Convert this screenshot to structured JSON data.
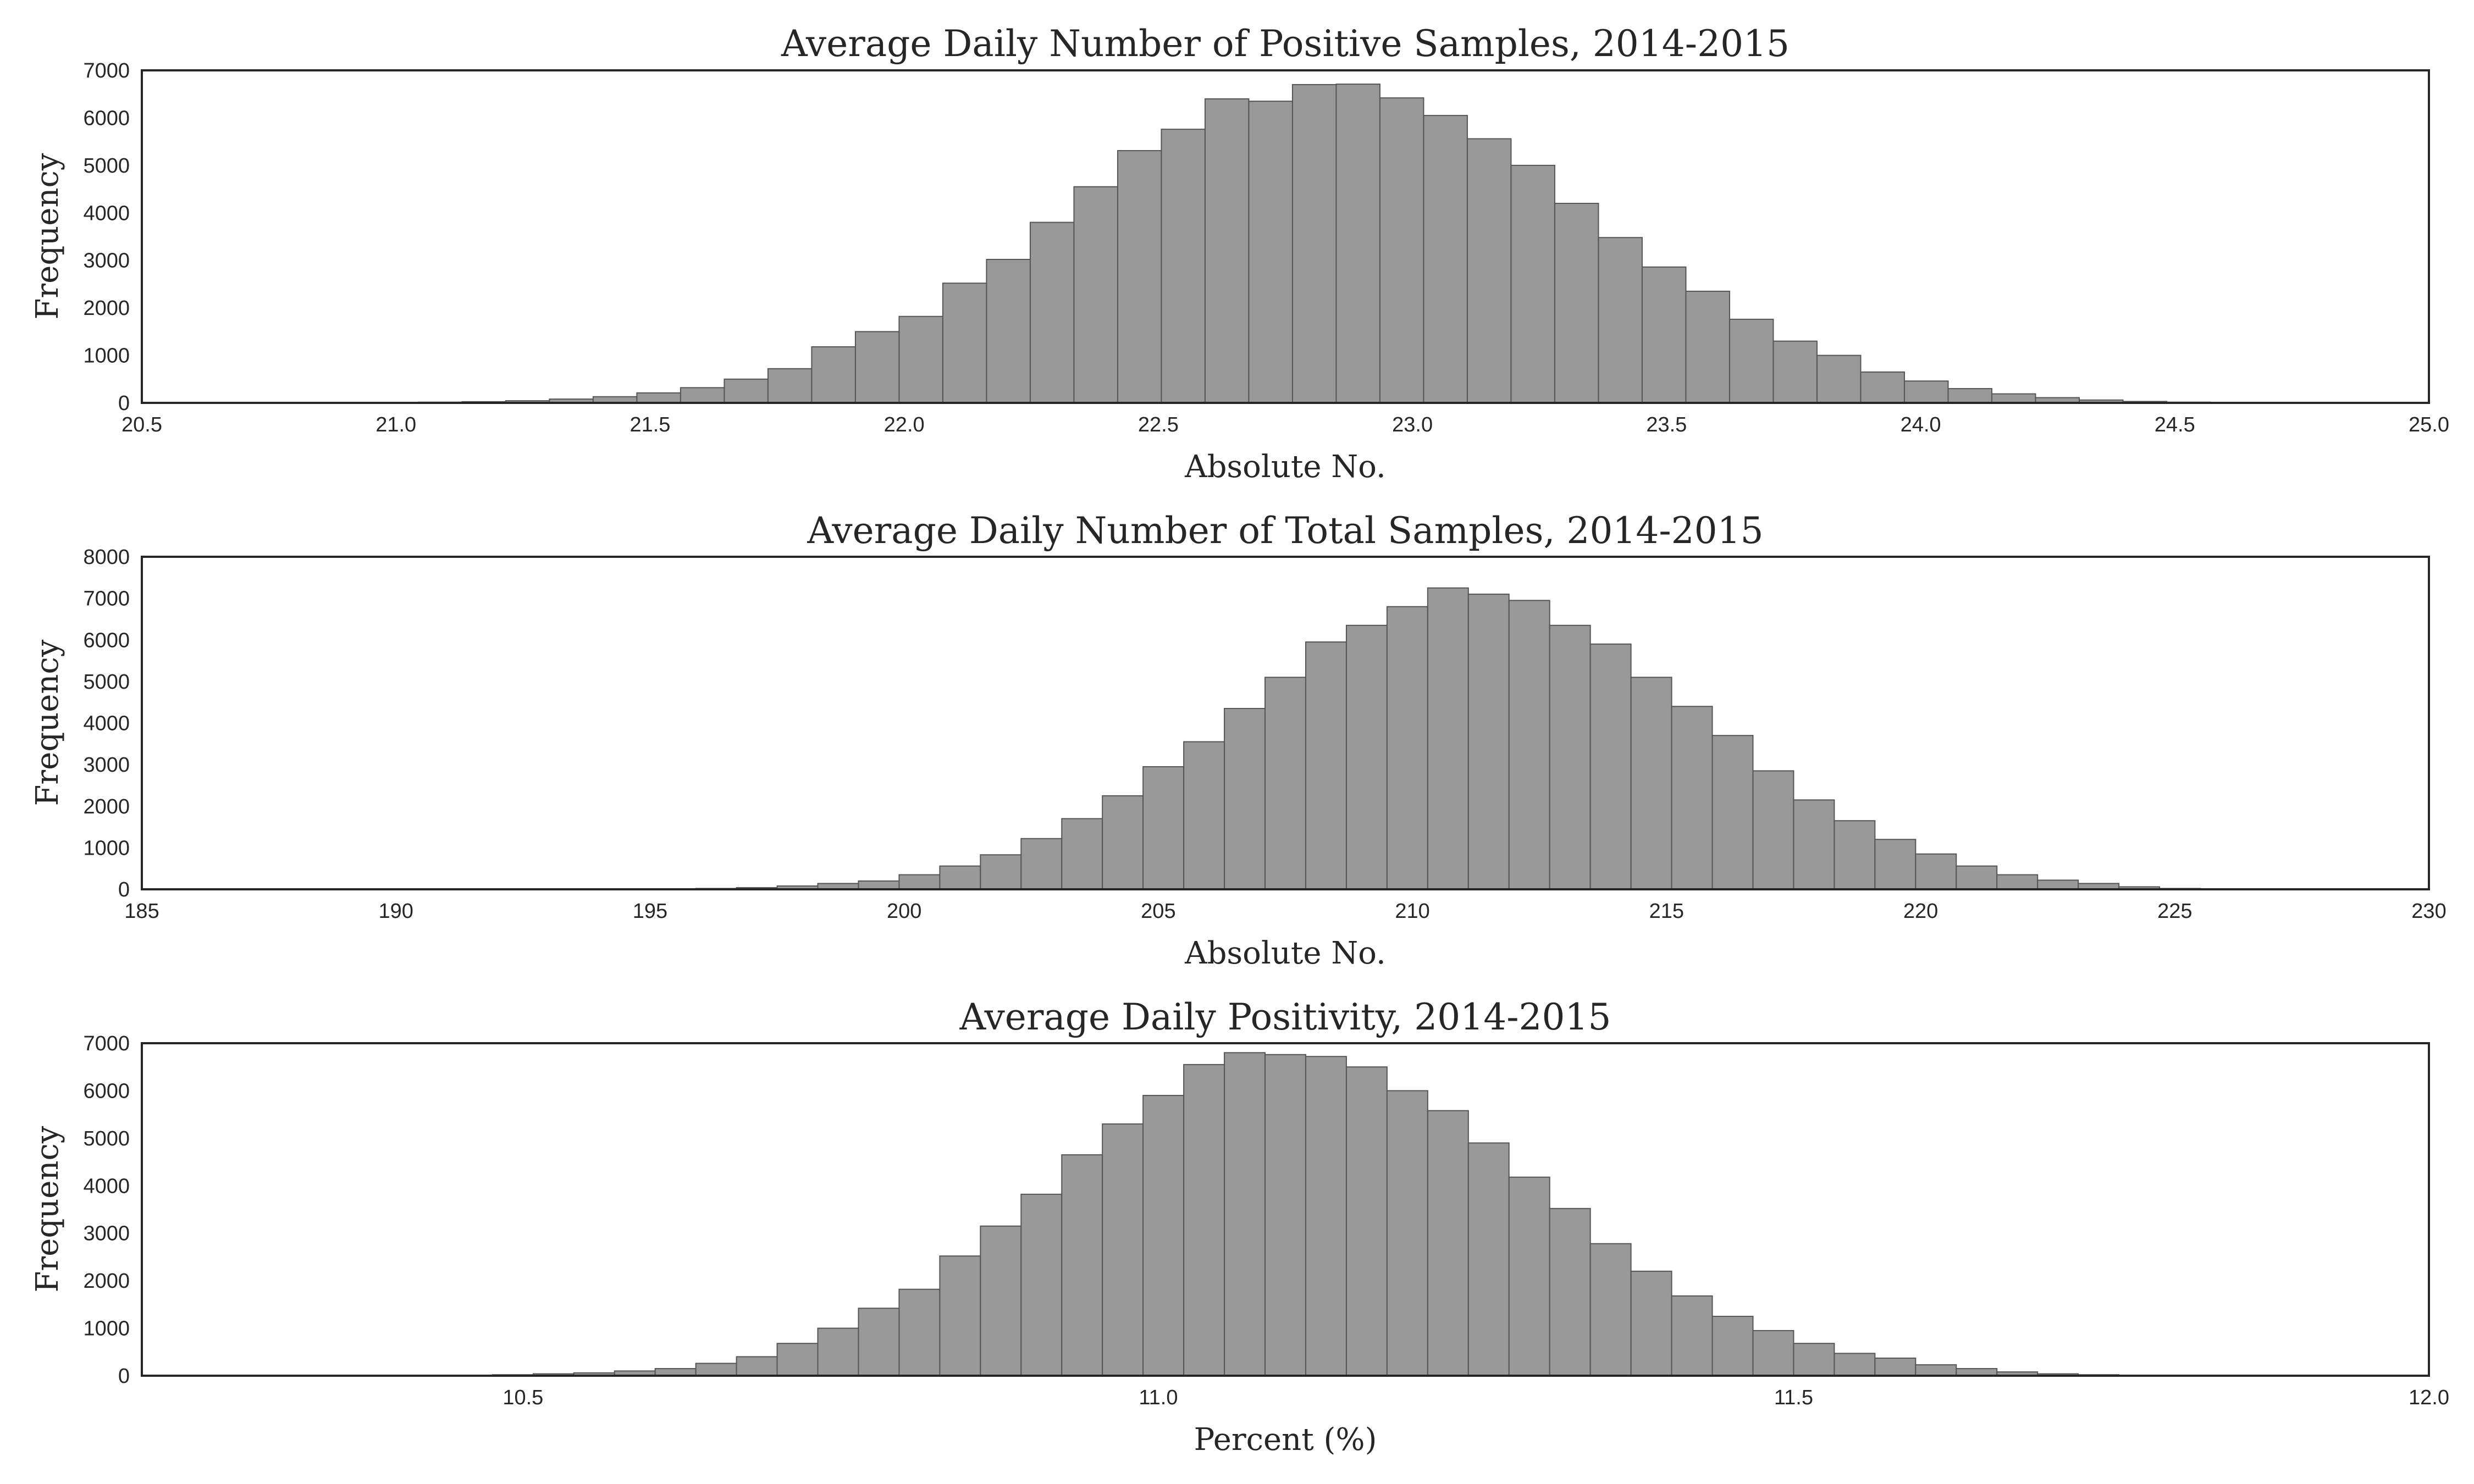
{
  "chart_data": [
    {
      "type": "bar",
      "title": "Average Daily Number of Positive Samples, 2014-2015",
      "xlabel": "Absolute No.",
      "ylabel": "Frequency",
      "xlim": [
        20.5,
        25.0
      ],
      "ylim": [
        0,
        7000
      ],
      "xticks": [
        "20.5",
        "21.0",
        "21.5",
        "22.0",
        "22.5",
        "23.0",
        "23.5",
        "24.0",
        "24.5",
        "25.0"
      ],
      "yticks": [
        "0",
        "1000",
        "2000",
        "3000",
        "4000",
        "5000",
        "6000",
        "7000"
      ],
      "grid": false,
      "bar_color": "#999999",
      "bin_start": 20.7,
      "bin_width": 0.086,
      "values": [
        1,
        2,
        4,
        8,
        15,
        25,
        45,
        80,
        130,
        210,
        320,
        500,
        720,
        1180,
        1500,
        1820,
        2520,
        3020,
        3800,
        4550,
        5310,
        5760,
        6400,
        6350,
        6700,
        6710,
        6420,
        6050,
        5560,
        5000,
        4200,
        3480,
        2860,
        2350,
        1760,
        1300,
        1000,
        650,
        460,
        300,
        190,
        110,
        60,
        30,
        15,
        7,
        3
      ]
    },
    {
      "type": "bar",
      "title": "Average Daily Number of Total Samples, 2014-2015",
      "xlabel": "Absolute No.",
      "ylabel": "Frequency",
      "xlim": [
        185,
        230
      ],
      "ylim": [
        0,
        8000
      ],
      "xticks": [
        "185",
        "190",
        "195",
        "200",
        "205",
        "210",
        "215",
        "220",
        "225",
        "230"
      ],
      "yticks": [
        "0",
        "1000",
        "2000",
        "3000",
        "4000",
        "5000",
        "6000",
        "7000",
        "8000"
      ],
      "grid": false,
      "bar_color": "#999999",
      "bin_start": 189.5,
      "bin_width": 0.8,
      "values": [
        1,
        2,
        3,
        4,
        5,
        6,
        8,
        12,
        20,
        40,
        80,
        140,
        200,
        350,
        560,
        830,
        1220,
        1700,
        2250,
        2950,
        3550,
        4350,
        5100,
        5950,
        6350,
        6800,
        7250,
        7100,
        6950,
        6350,
        5900,
        5100,
        4400,
        3700,
        2850,
        2150,
        1650,
        1200,
        850,
        560,
        350,
        220,
        140,
        60,
        20,
        5,
        2
      ]
    },
    {
      "type": "bar",
      "title": "Average Daily Positivity, 2014-2015",
      "xlabel": "Percent (%)",
      "ylabel": "Frequency",
      "xlim": [
        10.2,
        12.0
      ],
      "ylim": [
        0,
        7000
      ],
      "xticks": [
        "10.5",
        "11.0",
        "11.5",
        "12.0"
      ],
      "yticks": [
        "0",
        "1000",
        "2000",
        "3000",
        "4000",
        "5000",
        "6000",
        "7000"
      ],
      "grid": false,
      "bar_color": "#999999",
      "bin_start": 10.38,
      "bin_width": 0.032,
      "values": [
        2,
        5,
        10,
        20,
        40,
        60,
        100,
        150,
        260,
        400,
        680,
        1000,
        1420,
        1820,
        2520,
        3150,
        3820,
        4650,
        5300,
        5900,
        6550,
        6800,
        6760,
        6720,
        6500,
        6000,
        5580,
        4900,
        4180,
        3520,
        2780,
        2200,
        1680,
        1250,
        950,
        680,
        470,
        370,
        230,
        150,
        80,
        40,
        20,
        10
      ]
    }
  ]
}
